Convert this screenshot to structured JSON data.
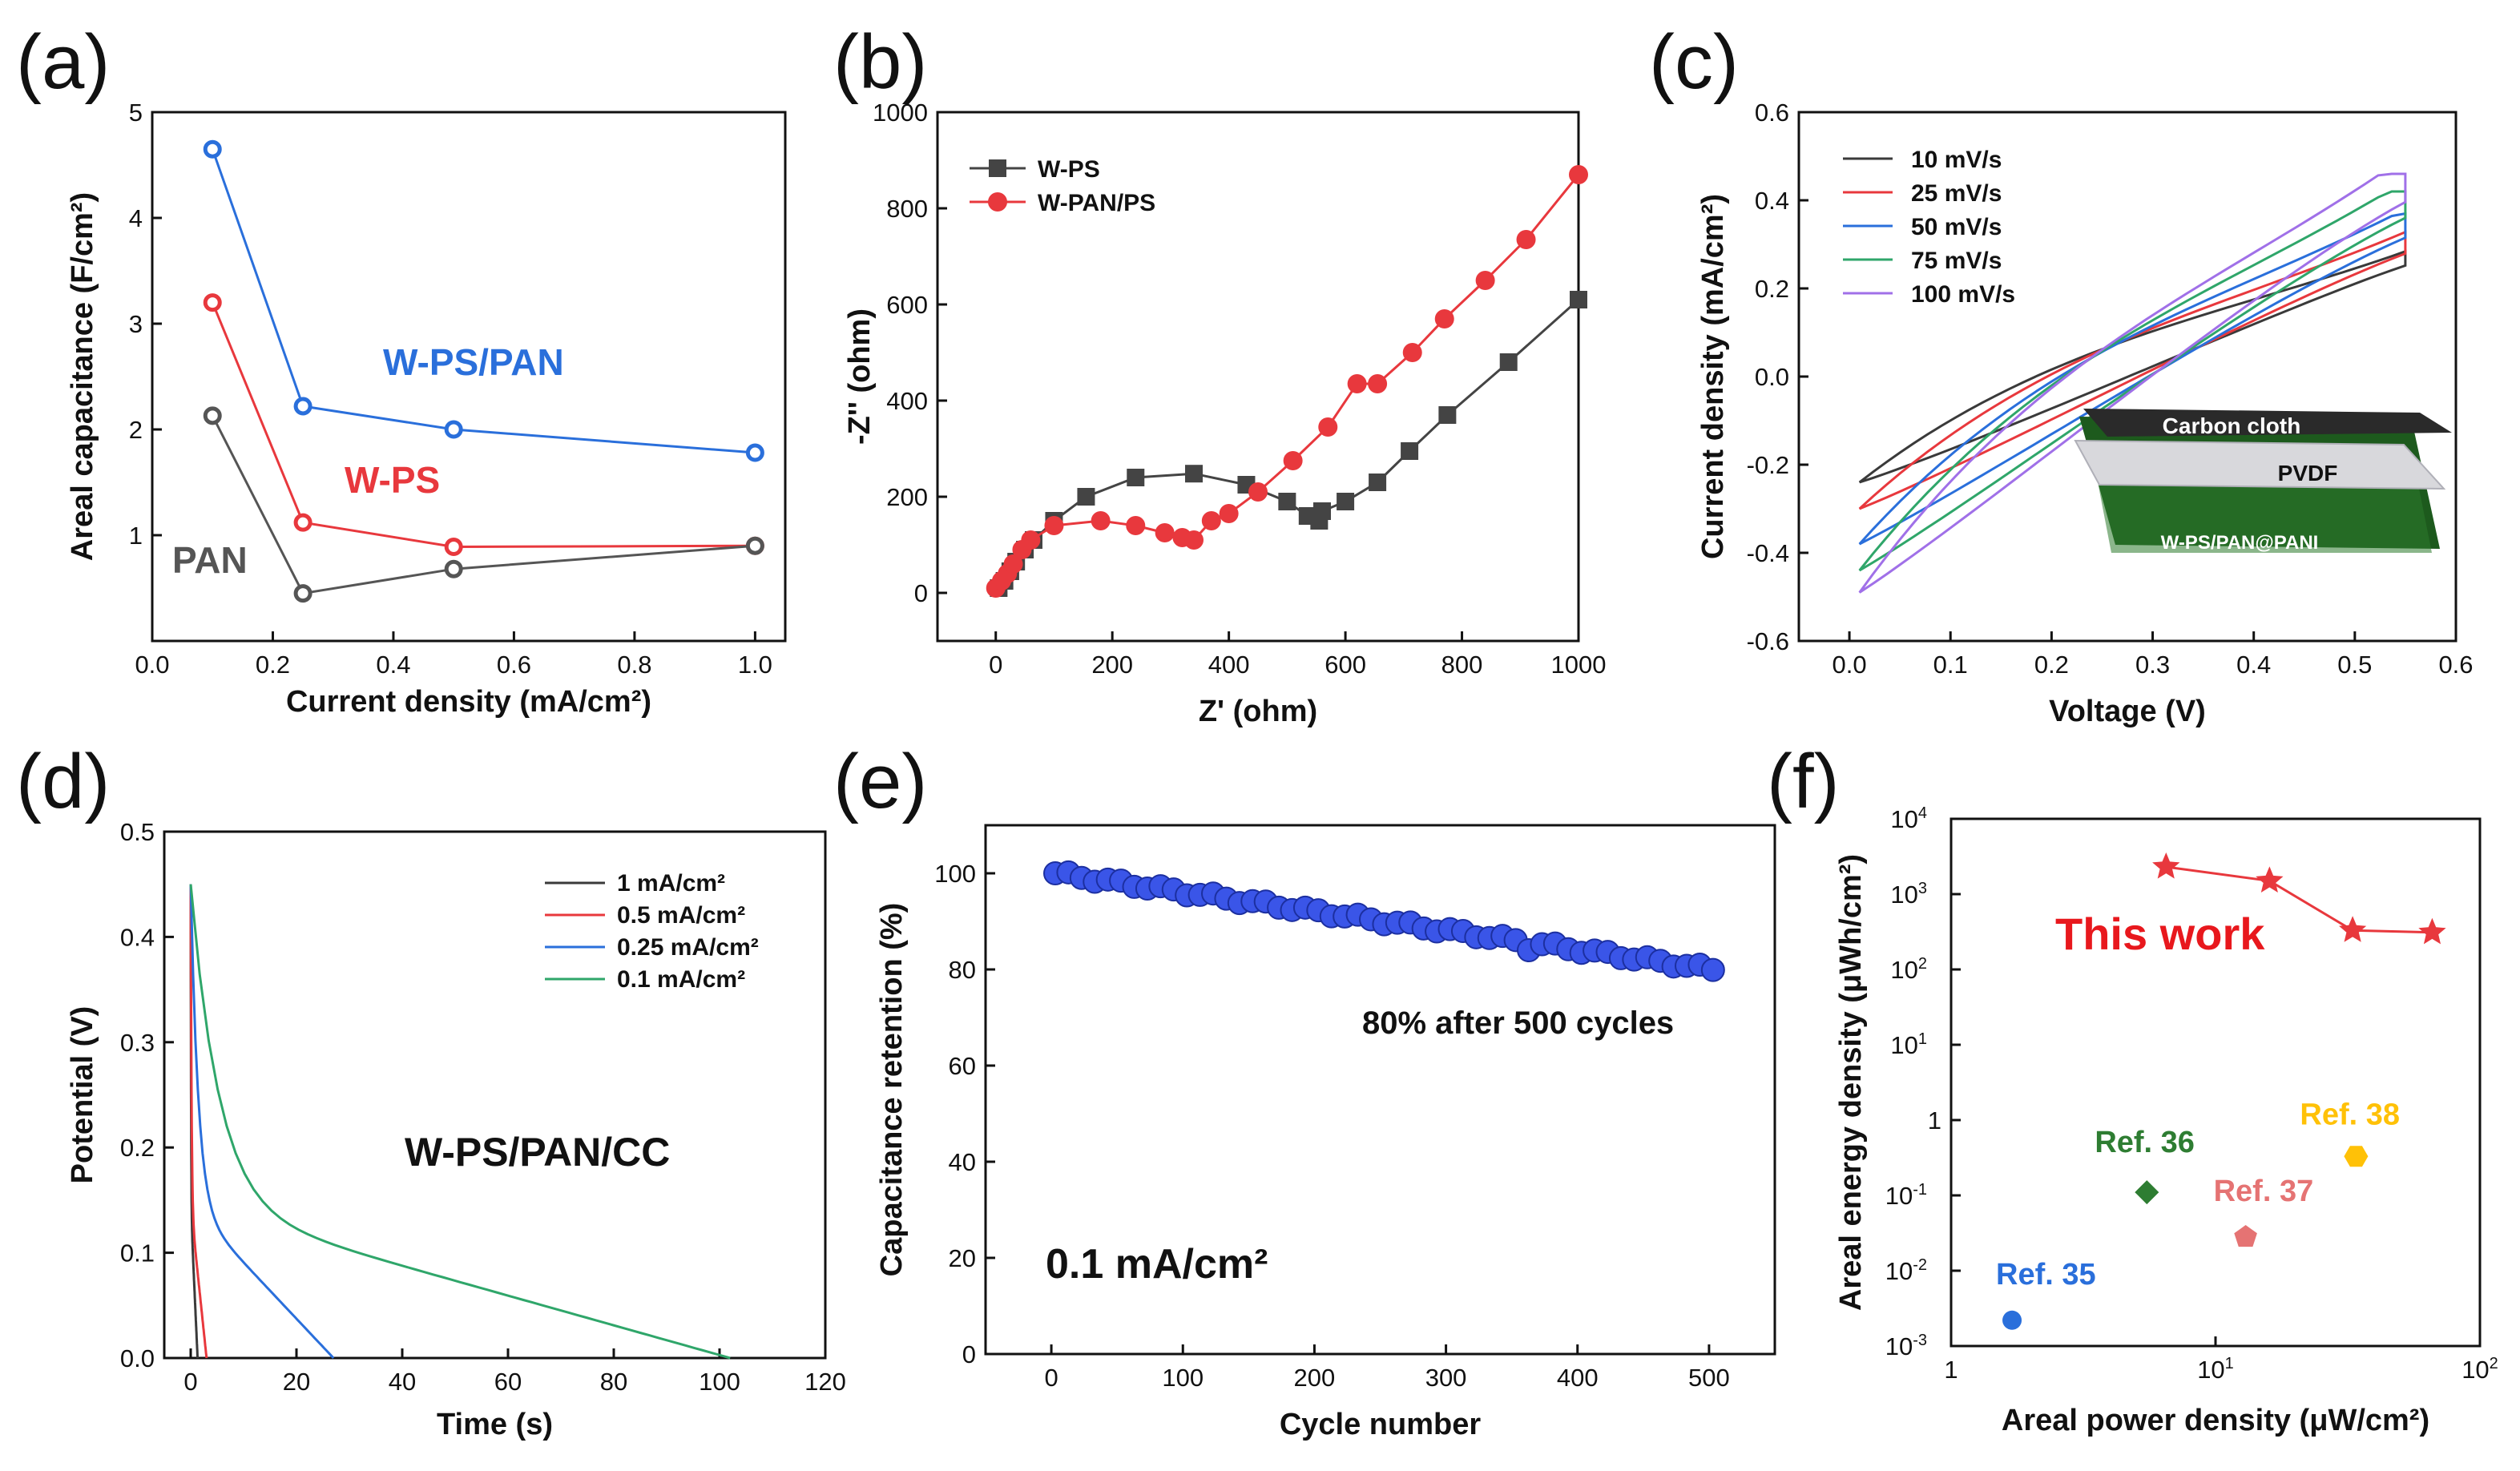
{
  "panels": {
    "a": "(a)",
    "b": "(b)",
    "c": "(c)",
    "d": "(d)",
    "e": "(e)",
    "f": "(f)"
  },
  "colors": {
    "blue": "#2a6fdb",
    "red": "#e8383d",
    "gray": "#555555",
    "black": "#3a3a3a",
    "green": "#2fa66a",
    "purple": "#a070e8"
  },
  "chart_data": [
    {
      "id": "a",
      "type": "line",
      "xlabel": "Current density (mA/cm²)",
      "ylabel": "Areal capacitance (F/cm²)",
      "xlim": [
        0,
        1.05
      ],
      "ylim": [
        0,
        5
      ],
      "xticks": [
        "0.0",
        "0.2",
        "0.4",
        "0.6",
        "0.8",
        "1.0"
      ],
      "yticks": [
        "1",
        "2",
        "3",
        "4",
        "5"
      ],
      "x": [
        0.1,
        0.25,
        0.5,
        1.0
      ],
      "series": [
        {
          "name": "W-PS/PAN",
          "color": "#2a6fdb",
          "values": [
            4.65,
            2.22,
            2.0,
            1.78
          ]
        },
        {
          "name": "W-PS",
          "color": "#e8383d",
          "values": [
            3.2,
            1.12,
            0.89,
            0.9
          ]
        },
        {
          "name": "PAN",
          "color": "#555555",
          "values": [
            2.13,
            0.45,
            0.68,
            0.9
          ]
        }
      ],
      "annotations": [
        "W-PS/PAN",
        "W-PS",
        "PAN"
      ]
    },
    {
      "id": "b",
      "type": "line",
      "xlabel": "Z' (ohm)",
      "ylabel": "-Z'' (ohm)",
      "xlim": [
        -100,
        1000
      ],
      "ylim": [
        -100,
        1000
      ],
      "xticks": [
        "0",
        "200",
        "400",
        "600",
        "800",
        "1000"
      ],
      "yticks": [
        "0",
        "200",
        "400",
        "600",
        "800",
        "1000"
      ],
      "series": [
        {
          "name": "W-PS",
          "color": "#444444",
          "marker": "square",
          "x": [
            5,
            15,
            25,
            35,
            50,
            65,
            100,
            155,
            240,
            340,
            430,
            500,
            535,
            555,
            560,
            600,
            655,
            710,
            775,
            880,
            1000
          ],
          "y": [
            10,
            25,
            45,
            65,
            90,
            110,
            150,
            200,
            240,
            248,
            225,
            190,
            160,
            150,
            170,
            190,
            230,
            295,
            370,
            480,
            610
          ]
        },
        {
          "name": "W-PAN/PS",
          "color": "#e8383d",
          "marker": "circle",
          "x": [
            0,
            10,
            20,
            30,
            45,
            60,
            100,
            180,
            240,
            290,
            320,
            340,
            370,
            400,
            450,
            510,
            570,
            620,
            655,
            715,
            770,
            840,
            910,
            1000
          ],
          "y": [
            10,
            25,
            40,
            60,
            90,
            110,
            140,
            150,
            140,
            125,
            115,
            110,
            150,
            165,
            210,
            275,
            345,
            435,
            435,
            500,
            570,
            650,
            735,
            870
          ]
        }
      ]
    },
    {
      "id": "c",
      "type": "line",
      "xlabel": "Voltage (V)",
      "ylabel": "Current density (mA/cm²)",
      "xlim": [
        -0.05,
        0.6
      ],
      "ylim": [
        -0.6,
        0.6
      ],
      "xticks": [
        "0.0",
        "0.1",
        "0.2",
        "0.3",
        "0.4",
        "0.5",
        "0.6"
      ],
      "yticks": [
        "-0.6",
        "-0.4",
        "-0.2",
        "0.0",
        "0.2",
        "0.4",
        "0.6"
      ],
      "series": [
        {
          "name": "10 mV/s",
          "color": "#3a3a3a",
          "vmax": 0.55,
          "ymin": -0.24,
          "ymax": 0.3
        },
        {
          "name": "25 mV/s",
          "color": "#e8383d",
          "vmax": 0.55,
          "ymin": -0.3,
          "ymax": 0.33
        },
        {
          "name": "50 mV/s",
          "color": "#2a6fdb",
          "vmax": 0.55,
          "ymin": -0.38,
          "ymax": 0.37
        },
        {
          "name": "75 mV/s",
          "color": "#2fa66a",
          "vmax": 0.55,
          "ymin": -0.44,
          "ymax": 0.42
        },
        {
          "name": "100 mV/s",
          "color": "#a070e8",
          "vmax": 0.55,
          "ymin": -0.49,
          "ymax": 0.46
        }
      ],
      "inset_labels": [
        "Carbon cloth",
        "PVDF",
        "W-PS/PAN@PANI"
      ]
    },
    {
      "id": "d",
      "type": "line",
      "xlabel": "Time (s)",
      "ylabel": "Potential (V)",
      "xlim": [
        -5,
        120
      ],
      "ylim": [
        0,
        0.5
      ],
      "xticks": [
        "0",
        "20",
        "40",
        "60",
        "80",
        "100",
        "120"
      ],
      "yticks": [
        "0.0",
        "0.1",
        "0.2",
        "0.3",
        "0.4",
        "0.5"
      ],
      "series": [
        {
          "name": "1 mA/cm²",
          "color": "#3a3a3a",
          "t_end": 1.3
        },
        {
          "name": "0.5 mA/cm²",
          "color": "#e8383d",
          "t_end": 3.0
        },
        {
          "name": "0.25 mA/cm²",
          "color": "#2a6fdb",
          "t_end": 27
        },
        {
          "name": "0.1 mA/cm²",
          "color": "#2fa66a",
          "t_end": 102
        }
      ],
      "annotation": "W-PS/PAN/CC"
    },
    {
      "id": "e",
      "type": "scatter",
      "xlabel": "Cycle number",
      "ylabel": "Capacitance retention (%)",
      "xlim": [
        -50,
        550
      ],
      "ylim": [
        0,
        110
      ],
      "xticks": [
        "0",
        "100",
        "200",
        "300",
        "400",
        "500"
      ],
      "yticks": [
        "0",
        "20",
        "40",
        "60",
        "80",
        "100"
      ],
      "start": 100,
      "end": 80,
      "count": 51,
      "dip_at": 360,
      "dip_value": 84,
      "annotations": [
        "80% after 500 cycles",
        "0.1 mA/cm²"
      ]
    },
    {
      "id": "f",
      "type": "scatter",
      "xlabel": "Areal power density (μW/cm²)",
      "ylabel": "Areal energy density (μWh/cm²)",
      "xscale": "log",
      "yscale": "log",
      "xlim": [
        1,
        100
      ],
      "ylim": [
        0.001,
        10000
      ],
      "this_work": {
        "label": "This work",
        "x": [
          6.5,
          16,
          33,
          66
        ],
        "y": [
          2300,
          1500,
          330,
          310
        ]
      },
      "refs": [
        {
          "label": "Ref. 35",
          "x": 1.7,
          "y": 0.0022,
          "color": "#2a6fdb",
          "marker": "circle"
        },
        {
          "label": "Ref. 36",
          "x": 5.5,
          "y": 0.11,
          "color": "#2e7d32",
          "marker": "diamond"
        },
        {
          "label": "Ref. 37",
          "x": 13,
          "y": 0.028,
          "color": "#e57373",
          "marker": "pentagon"
        },
        {
          "label": "Ref. 38",
          "x": 34,
          "y": 0.33,
          "color": "#ffc107",
          "marker": "hexagon"
        }
      ]
    }
  ]
}
